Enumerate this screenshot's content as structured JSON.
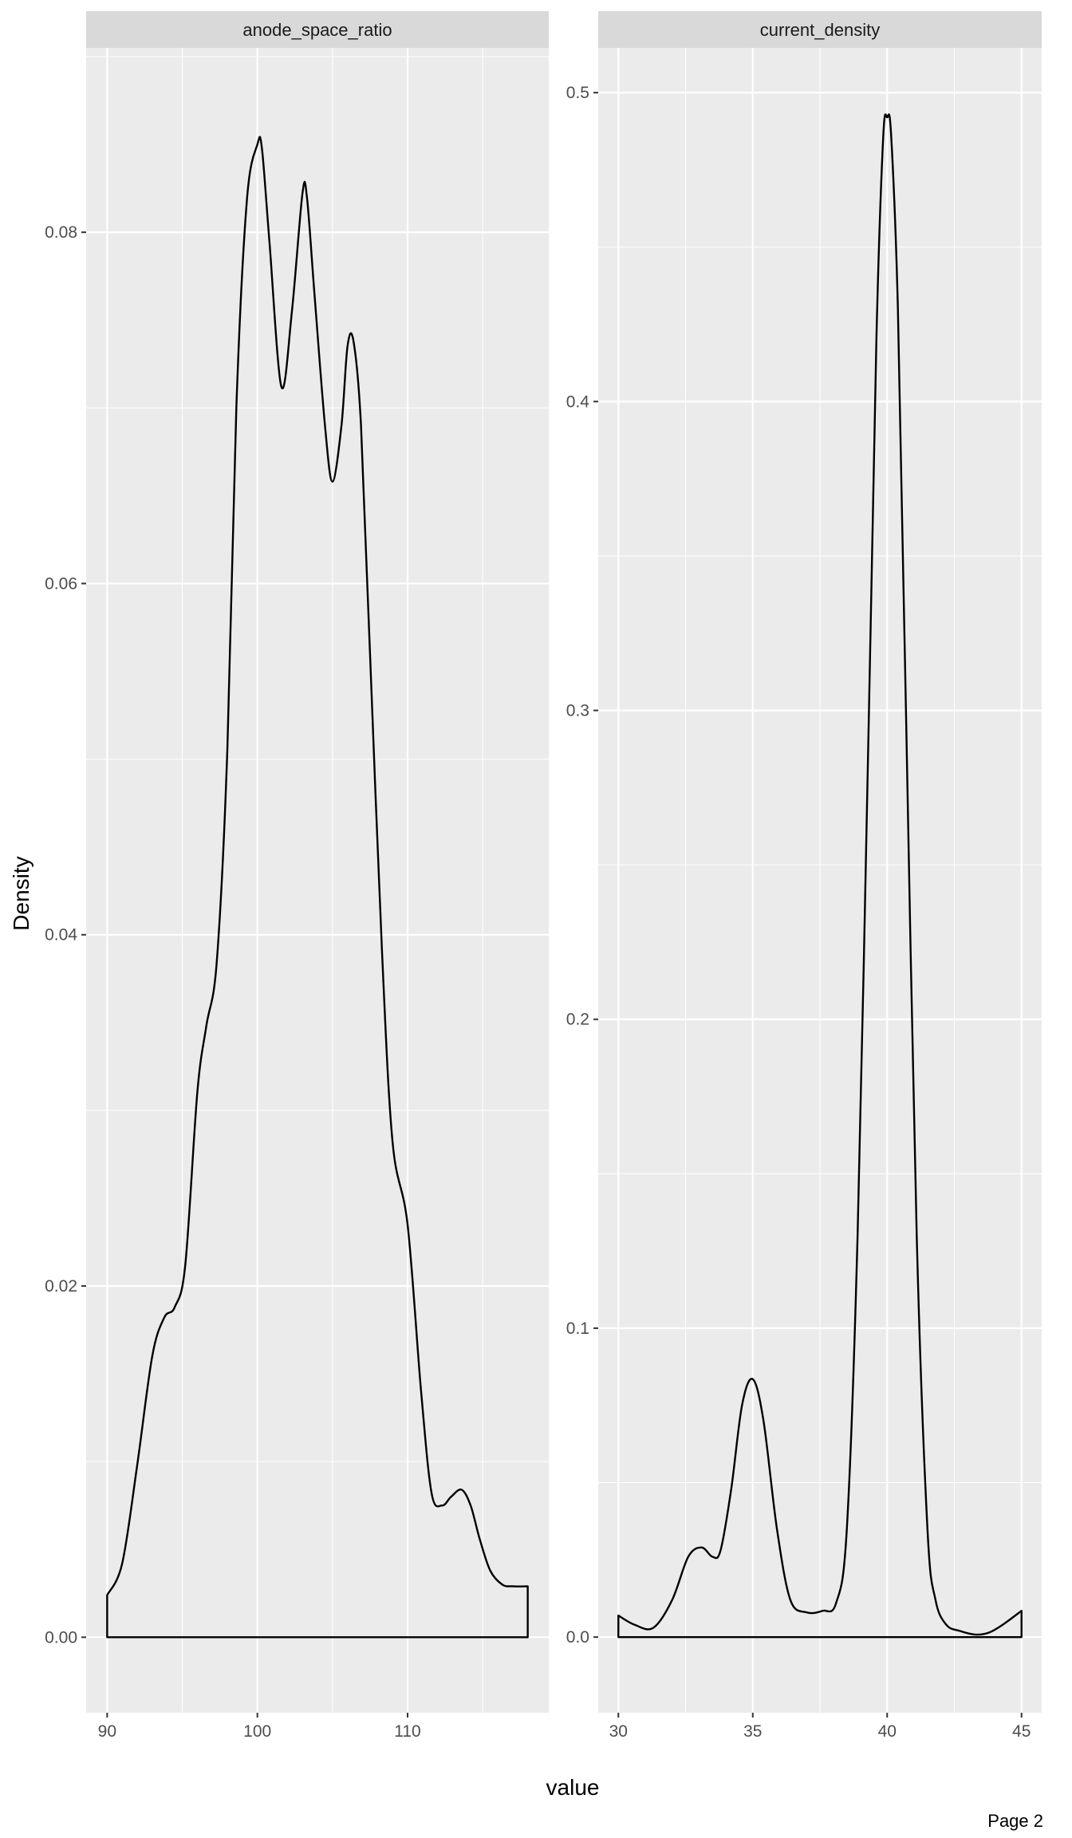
{
  "caption": "Page 2",
  "chart_data": {
    "type": "area",
    "xlabel": "value",
    "ylabel": "Density",
    "facets": [
      {
        "name": "anode_space_ratio",
        "xlim": [
          88.6,
          119.4
        ],
        "ylim": [
          -0.0043,
          0.0905
        ],
        "x_ticks": [
          90,
          100,
          110
        ],
        "y_ticks": [
          0.0,
          0.02,
          0.04,
          0.06,
          0.08
        ],
        "y_tick_labels": [
          "0.00",
          "0.02",
          "0.04",
          "0.06",
          "0.08"
        ],
        "x_domain": [
          90,
          118
        ],
        "x": [
          90,
          91,
          92,
          93,
          93.8,
          94.5,
          95.2,
          96,
          96.6,
          97.3,
          98,
          98.6,
          99.3,
          100,
          100.3,
          100.8,
          101.6,
          102.3,
          103,
          103.3,
          103.8,
          104.5,
          105,
          105.6,
          106,
          106.4,
          106.9,
          107.5,
          108.3,
          109,
          110,
          110.9,
          111.6,
          112.3,
          112.9,
          113.6,
          114.2,
          114.8,
          115.5,
          116.3,
          117,
          118
        ],
        "y": [
          0.0024,
          0.0042,
          0.0098,
          0.016,
          0.0182,
          0.0188,
          0.0212,
          0.031,
          0.0348,
          0.0385,
          0.0505,
          0.07,
          0.0818,
          0.085,
          0.0848,
          0.0795,
          0.0712,
          0.0755,
          0.0822,
          0.082,
          0.0765,
          0.069,
          0.0658,
          0.069,
          0.0735,
          0.0738,
          0.069,
          0.056,
          0.039,
          0.0282,
          0.0235,
          0.014,
          0.0082,
          0.0075,
          0.008,
          0.0084,
          0.0075,
          0.0056,
          0.0038,
          0.003,
          0.0029,
          0.0029
        ]
      },
      {
        "name": "current_density",
        "xlim": [
          29.25,
          45.75
        ],
        "ylim": [
          -0.0245,
          0.5145
        ],
        "x_ticks": [
          30,
          35,
          40,
          45
        ],
        "y_ticks": [
          0.0,
          0.1,
          0.2,
          0.3,
          0.4,
          0.5
        ],
        "y_tick_labels": [
          "0.0",
          "0.1",
          "0.2",
          "0.3",
          "0.4",
          "0.5"
        ],
        "x_domain": [
          30,
          45
        ],
        "x": [
          30,
          30.6,
          31.3,
          32,
          32.6,
          33.1,
          33.5,
          33.8,
          34.2,
          34.6,
          35,
          35.4,
          35.9,
          36.4,
          37,
          37.6,
          38.1,
          38.5,
          38.9,
          39.3,
          39.6,
          39.85,
          40,
          40.15,
          40.4,
          40.7,
          41.1,
          41.5,
          41.8,
          42.2,
          42.7,
          43.3,
          43.8,
          44.3,
          45
        ],
        "y": [
          0.007,
          0.004,
          0.003,
          0.012,
          0.026,
          0.029,
          0.026,
          0.028,
          0.048,
          0.075,
          0.0835,
          0.07,
          0.035,
          0.012,
          0.008,
          0.0085,
          0.011,
          0.035,
          0.13,
          0.29,
          0.42,
          0.485,
          0.492,
          0.486,
          0.43,
          0.3,
          0.13,
          0.035,
          0.012,
          0.004,
          0.002,
          0.0008,
          0.0015,
          0.004,
          0.0085
        ]
      }
    ]
  }
}
